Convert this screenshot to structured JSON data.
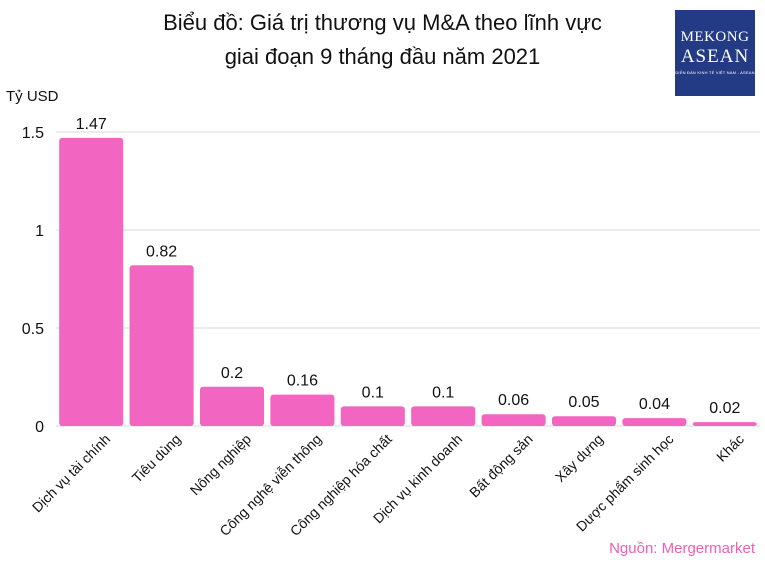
{
  "header": {
    "title_line1": "Biểu đồ: Giá trị thương vụ M&A theo lĩnh vực",
    "title_line2": "giai đoạn 9 tháng đầu năm 2021",
    "unit": "Tỷ USD",
    "source": "Nguồn: Mergermarket"
  },
  "logo": {
    "line1": "MEKONG",
    "line2": "ASEAN",
    "line3": "DIỄN ĐÀN KINH TẾ VIỆT NAM - ASEAN"
  },
  "colors": {
    "bar": "#f266c1",
    "grid": "#d9d9d9",
    "source": "#ef5fb5",
    "logo_bg": "#233a85"
  },
  "chart_data": {
    "type": "bar",
    "title": "Biểu đồ: Giá trị thương vụ M&A theo lĩnh vực giai đoạn 9 tháng đầu năm 2021",
    "ylabel": "Tỷ USD",
    "xlabel": "",
    "ylim": [
      0,
      1.5
    ],
    "yticks": [
      0,
      0.5,
      1,
      1.5
    ],
    "ytick_labels": [
      "0",
      "0.5",
      "1",
      "1.5"
    ],
    "grid": true,
    "categories": [
      "Dịch vụ tài chính",
      "Tiêu dùng",
      "Nông nghiệp",
      "Công nghệ viễn thông",
      "Công nghiệp hóa chất",
      "Dịch vụ kinh doanh",
      "Bất động sản",
      "Xây dựng",
      "Dược phẩm sinh học",
      "Khác"
    ],
    "values": [
      1.47,
      0.82,
      0.2,
      0.16,
      0.1,
      0.1,
      0.06,
      0.05,
      0.04,
      0.02
    ],
    "value_labels": [
      "1.47",
      "0.82",
      "0.2",
      "0.16",
      "0.1",
      "0.1",
      "0.06",
      "0.05",
      "0.04",
      "0.02"
    ]
  }
}
